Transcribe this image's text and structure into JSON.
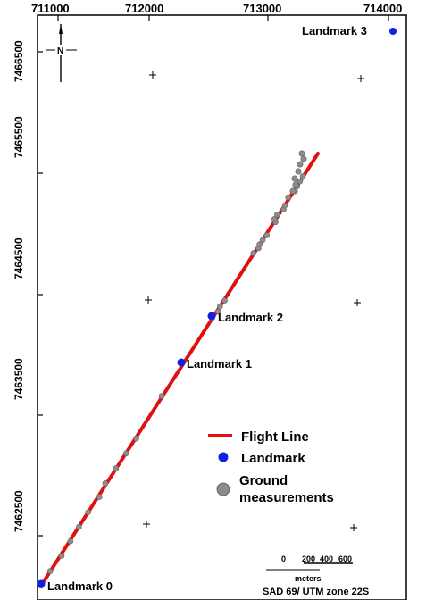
{
  "map": {
    "x_ticks": [
      "711000",
      "712000",
      "713000",
      "714000"
    ],
    "y_ticks": [
      "7466500",
      "7465500",
      "7464500",
      "7463500",
      "7462500"
    ],
    "colors": {
      "flight_line": "#e01010",
      "landmark": "#1020e0",
      "ground": "#8c8c8c",
      "frame": "#000000"
    }
  },
  "north_arrow": {
    "label": "N"
  },
  "landmarks": [
    {
      "label": "Landmark 0"
    },
    {
      "label": "Landmark 1"
    },
    {
      "label": "Landmark 2"
    },
    {
      "label": "Landmark 3"
    }
  ],
  "legend": {
    "flight_line": "Flight Line",
    "landmark": "Landmark",
    "ground_line1": "Ground",
    "ground_line2": "measurements"
  },
  "scale_bar": {
    "ticks": [
      "0",
      "200",
      "400",
      "600"
    ],
    "unit": "meters"
  },
  "crs": "SAD 69/ UTM zone 22S"
}
